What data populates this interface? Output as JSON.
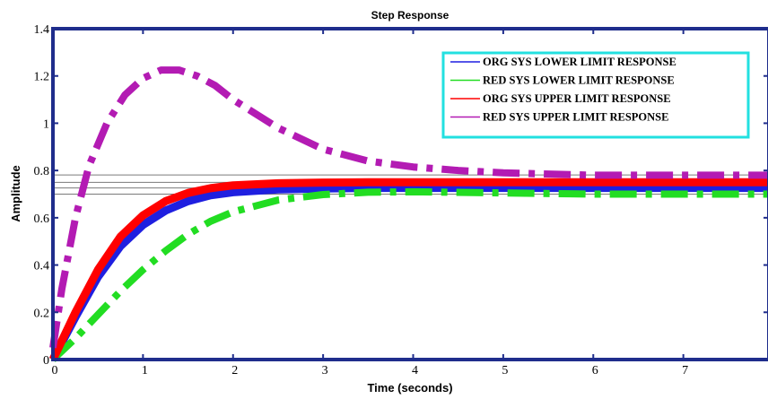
{
  "chart_data": {
    "type": "line",
    "title": "Step Response",
    "xlabel": "Time (seconds)",
    "ylabel": "Amplitude",
    "xlim": [
      0,
      7.95
    ],
    "ylim": [
      0,
      1.4
    ],
    "x_ticks": [
      0,
      1,
      2,
      3,
      4,
      5,
      6,
      7
    ],
    "x_tick_labels": [
      "0",
      "1",
      "2",
      "3",
      "4",
      "5",
      "6",
      "7"
    ],
    "y_ticks": [
      0,
      0.2,
      0.4,
      0.6,
      0.8,
      1,
      1.2,
      1.4
    ],
    "y_tick_labels": [
      "0",
      "0.2",
      "0.4",
      "0.6",
      "0.8",
      "1",
      "1.2",
      "1.4"
    ],
    "grid": false,
    "legend_position": "top-right",
    "steady_state_reference_lines": [
      0.7,
      0.726,
      0.75,
      0.781
    ],
    "series": [
      {
        "name": "ORG SYS LOWER LIMIT RESPONSE",
        "color": "#1f1fe0",
        "style": "solid",
        "x": [
          0,
          0.25,
          0.5,
          0.75,
          1,
          1.25,
          1.5,
          1.75,
          2,
          2.5,
          3,
          3.5,
          4,
          5,
          6,
          7,
          7.95
        ],
        "y": [
          0,
          0.18,
          0.35,
          0.48,
          0.57,
          0.63,
          0.67,
          0.695,
          0.708,
          0.72,
          0.724,
          0.726,
          0.726,
          0.726,
          0.726,
          0.726,
          0.726
        ]
      },
      {
        "name": "RED SYS LOWER LIMIT RESPONSE",
        "color": "#22dd22",
        "style": "dashdot",
        "x": [
          0,
          0.25,
          0.5,
          0.75,
          1,
          1.25,
          1.5,
          1.75,
          2,
          2.5,
          3,
          3.5,
          4,
          5,
          6,
          7,
          7.95
        ],
        "y": [
          0,
          0.09,
          0.19,
          0.29,
          0.38,
          0.46,
          0.53,
          0.585,
          0.625,
          0.675,
          0.698,
          0.708,
          0.71,
          0.705,
          0.7,
          0.7,
          0.7
        ]
      },
      {
        "name": "ORG SYS UPPER LIMIT RESPONSE",
        "color": "#ff0000",
        "style": "solid",
        "x": [
          0,
          0.25,
          0.5,
          0.75,
          1,
          1.25,
          1.5,
          1.75,
          2,
          2.5,
          3,
          3.5,
          4,
          5,
          6,
          7,
          7.95
        ],
        "y": [
          0,
          0.2,
          0.38,
          0.52,
          0.61,
          0.67,
          0.705,
          0.725,
          0.737,
          0.746,
          0.749,
          0.75,
          0.75,
          0.75,
          0.75,
          0.75,
          0.75
        ]
      },
      {
        "name": "RED SYS UPPER LIMIT RESPONSE",
        "color": "#b31bb3",
        "style": "dashdot",
        "x": [
          0,
          0.1,
          0.25,
          0.4,
          0.6,
          0.8,
          1,
          1.2,
          1.4,
          1.6,
          1.8,
          2,
          2.5,
          3,
          3.5,
          4,
          4.5,
          5,
          5.5,
          6,
          7,
          7.95
        ],
        "y": [
          0.05,
          0.3,
          0.6,
          0.82,
          1.0,
          1.12,
          1.19,
          1.225,
          1.225,
          1.2,
          1.16,
          1.1,
          0.98,
          0.89,
          0.84,
          0.815,
          0.8,
          0.79,
          0.785,
          0.78,
          0.78,
          0.78
        ]
      }
    ]
  }
}
